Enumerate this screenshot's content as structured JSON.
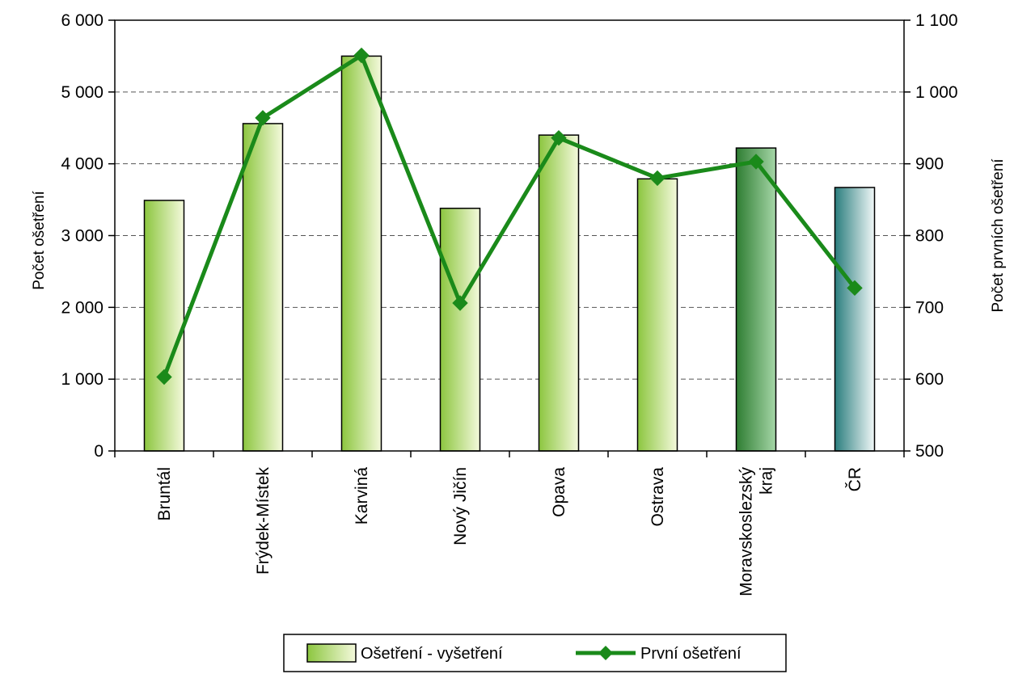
{
  "chart_data": {
    "type": "bar+line",
    "categories": [
      "Bruntál",
      "Frýdek-Místek",
      "Karviná",
      "Nový Jičín",
      "Opava",
      "Ostrava",
      "Moravskoslezský kraj",
      "ČR"
    ],
    "category_lines": [
      [
        "Bruntál"
      ],
      [
        "Frýdek-Místek"
      ],
      [
        "Karviná"
      ],
      [
        "Nový Jičín"
      ],
      [
        "Opava"
      ],
      [
        "Ostrava"
      ],
      [
        "Moravskoslezský",
        "kraj"
      ],
      [
        "ČR"
      ]
    ],
    "series": [
      {
        "name": "Ošetření - vyšetření",
        "type": "bar",
        "axis": "left",
        "values": [
          3490,
          4560,
          5500,
          3380,
          4400,
          3790,
          4220,
          3670
        ]
      },
      {
        "name": "První ošetření",
        "type": "line",
        "axis": "right",
        "marker": "diamond",
        "values": [
          603,
          964,
          1051,
          706,
          936,
          880,
          903,
          727
        ]
      }
    ],
    "y_left": {
      "label": "Počet ošetření",
      "range": [
        0,
        6000
      ],
      "ticks": [
        0,
        1000,
        2000,
        3000,
        4000,
        5000,
        6000
      ],
      "tick_labels": [
        "0",
        "1 000",
        "2 000",
        "3 000",
        "4 000",
        "5 000",
        "6 000"
      ]
    },
    "y_right": {
      "label": "Počet prvních ošetření",
      "range": [
        500,
        1100
      ],
      "ticks": [
        500,
        600,
        700,
        800,
        900,
        1000,
        1100
      ],
      "tick_labels": [
        "500",
        "600",
        "700",
        "800",
        "900",
        "1 000",
        "1 100"
      ]
    },
    "grid": "horizontal dashed",
    "legend_position": "bottom",
    "colors": {
      "bar_gradient_start": "#8cc63f",
      "bar_gradient_end": "#f4f9dc",
      "bar_region_start": "#2e7d32",
      "bar_region_end": "#a5d6a7",
      "bar_country_start": "#2a7d7d",
      "bar_country_end": "#f1f8f8",
      "line": "#1a8a1a"
    }
  }
}
